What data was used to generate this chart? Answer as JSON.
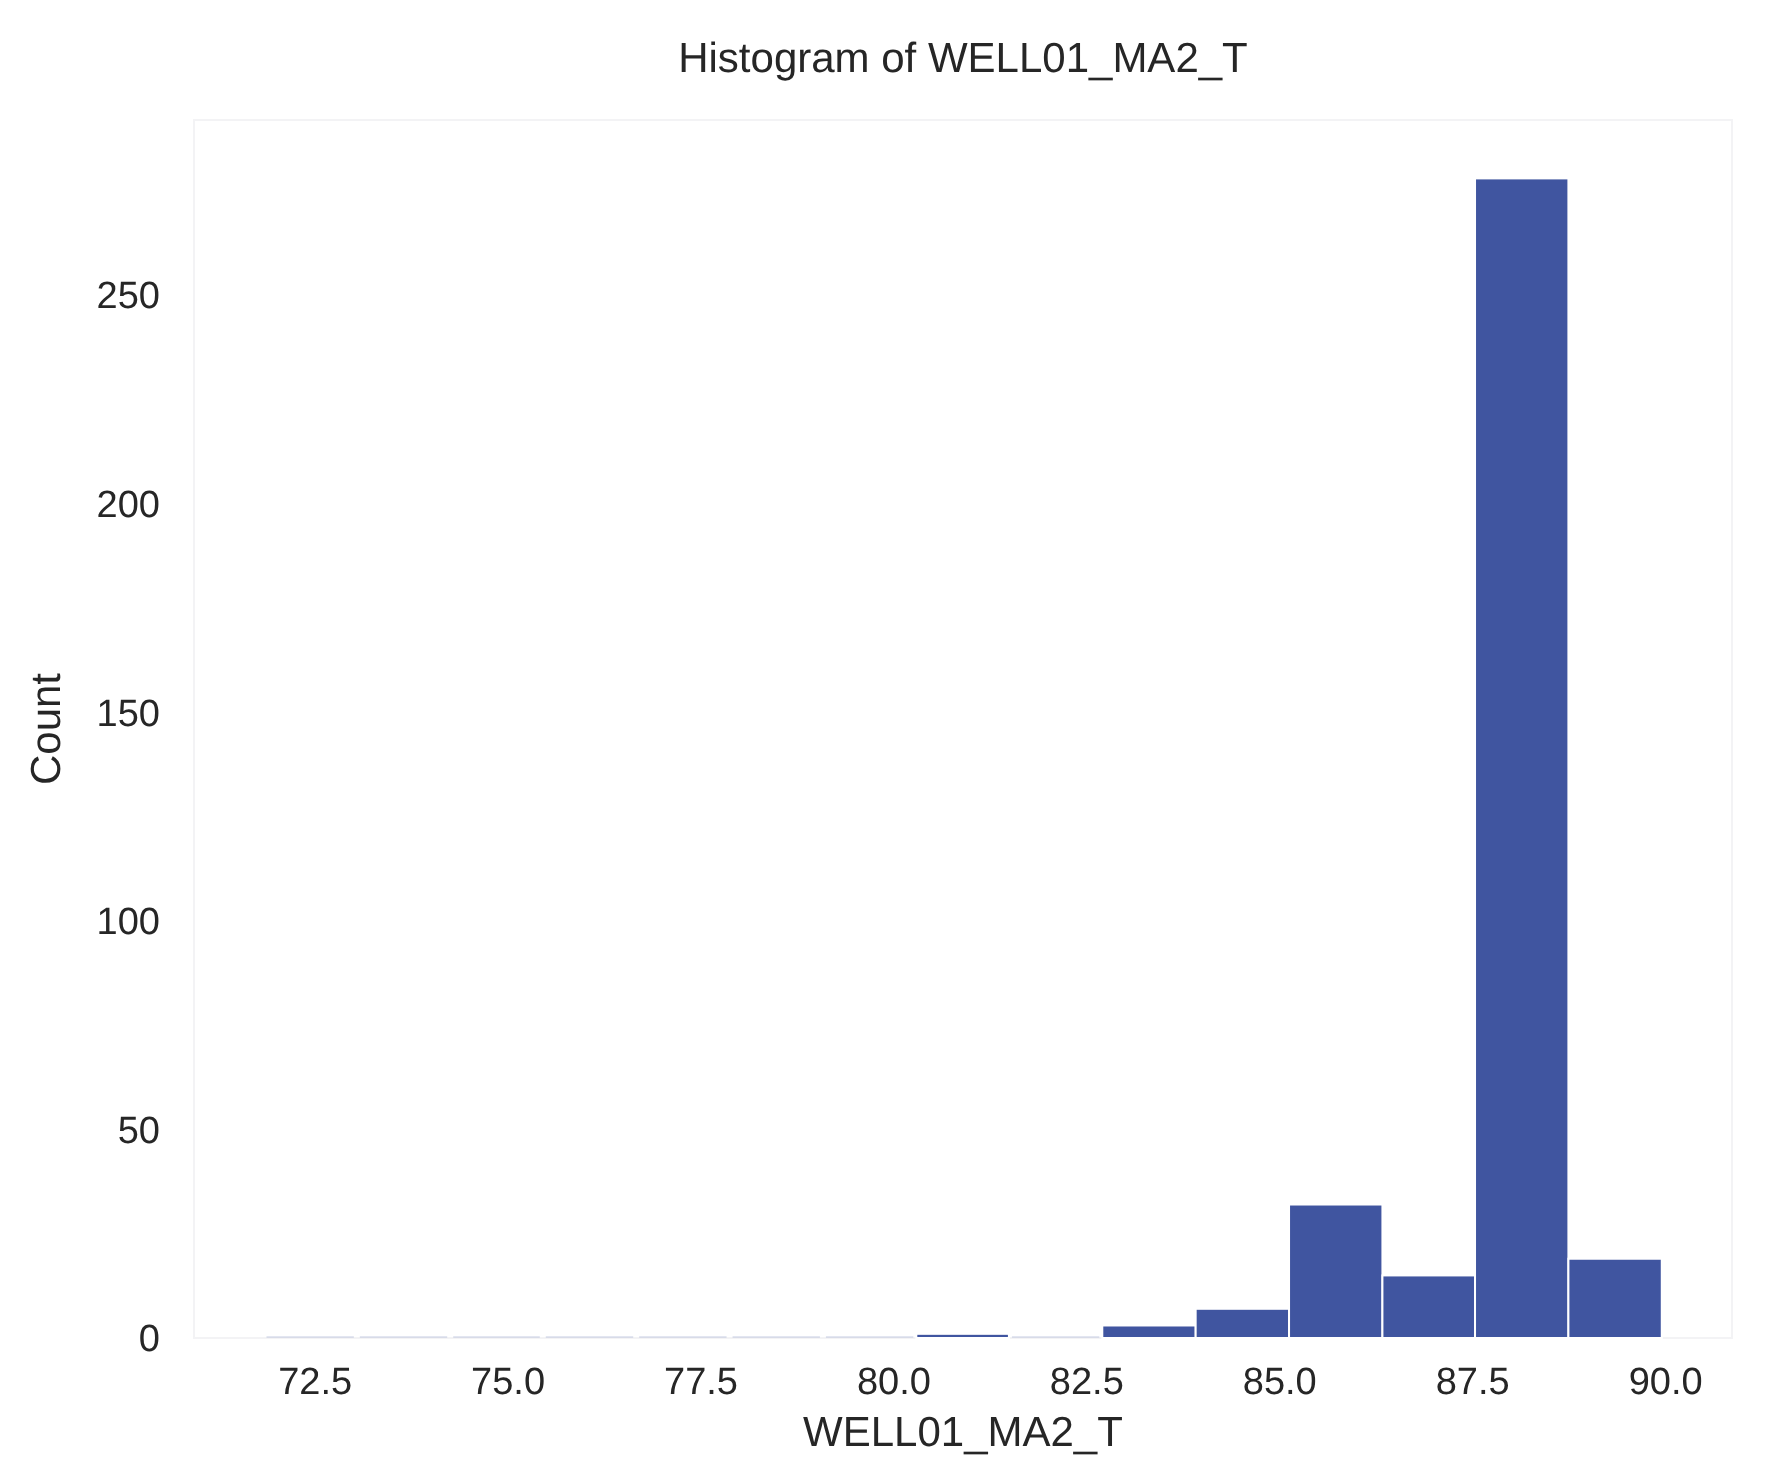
{
  "chart_data": {
    "type": "histogram",
    "title": "Histogram of WELL01_MA2_T",
    "xlabel": "WELL01_MA2_T",
    "ylabel": "Count",
    "bins": [
      71.83,
      73.04,
      74.25,
      75.45,
      76.66,
      77.87,
      79.08,
      80.29,
      81.49,
      82.7,
      83.91,
      85.12,
      86.33,
      87.53,
      88.74,
      89.95
    ],
    "values": [
      0,
      0,
      0,
      0,
      0,
      0,
      0,
      1,
      0,
      3,
      7,
      32,
      15,
      278,
      19
    ],
    "color": "#4055a0",
    "xlim": [
      70.93,
      90.86
    ],
    "xticks": [
      {
        "value": 72.5,
        "label": "72.5"
      },
      {
        "value": 75,
        "label": "75.0"
      },
      {
        "value": 77.5,
        "label": "77.5"
      },
      {
        "value": 80,
        "label": "80.0"
      },
      {
        "value": 82.5,
        "label": "82.5"
      },
      {
        "value": 85,
        "label": "85.0"
      },
      {
        "value": 87.5,
        "label": "87.5"
      },
      {
        "value": 90,
        "label": "90.0"
      }
    ],
    "ylim": [
      0,
      292
    ],
    "yticks": [
      0,
      50,
      100,
      150,
      200,
      250
    ],
    "grid": false
  }
}
